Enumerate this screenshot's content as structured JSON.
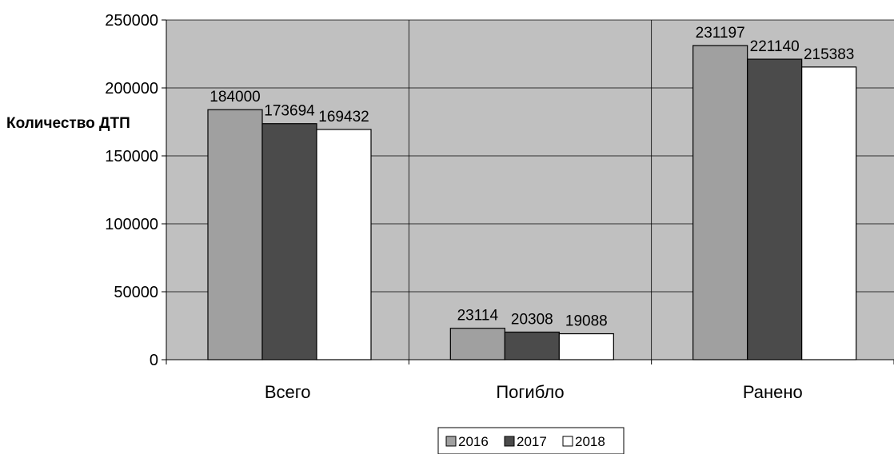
{
  "chart_data": {
    "type": "bar",
    "title": "",
    "xlabel": "",
    "ylabel": "Количество ДТП",
    "categories": [
      "Всего",
      "Погибло",
      "Ранено"
    ],
    "series": [
      {
        "name": "2016",
        "values": [
          184000,
          23114,
          231197
        ],
        "color": "#a0a0a0"
      },
      {
        "name": "2017",
        "values": [
          173694,
          20308,
          221140
        ],
        "color": "#4b4b4b"
      },
      {
        "name": "2018",
        "values": [
          169432,
          19088,
          215383
        ],
        "color": "#ffffff"
      }
    ],
    "ylim": [
      0,
      250000
    ],
    "yticks": [
      0,
      50000,
      100000,
      150000,
      200000,
      250000
    ],
    "ytick_labels": [
      "0",
      "50000",
      "100000",
      "150000",
      "200000",
      "250000"
    ],
    "plot_background": "#c0c0c0",
    "grid": true,
    "legend_position": "bottom-center"
  }
}
